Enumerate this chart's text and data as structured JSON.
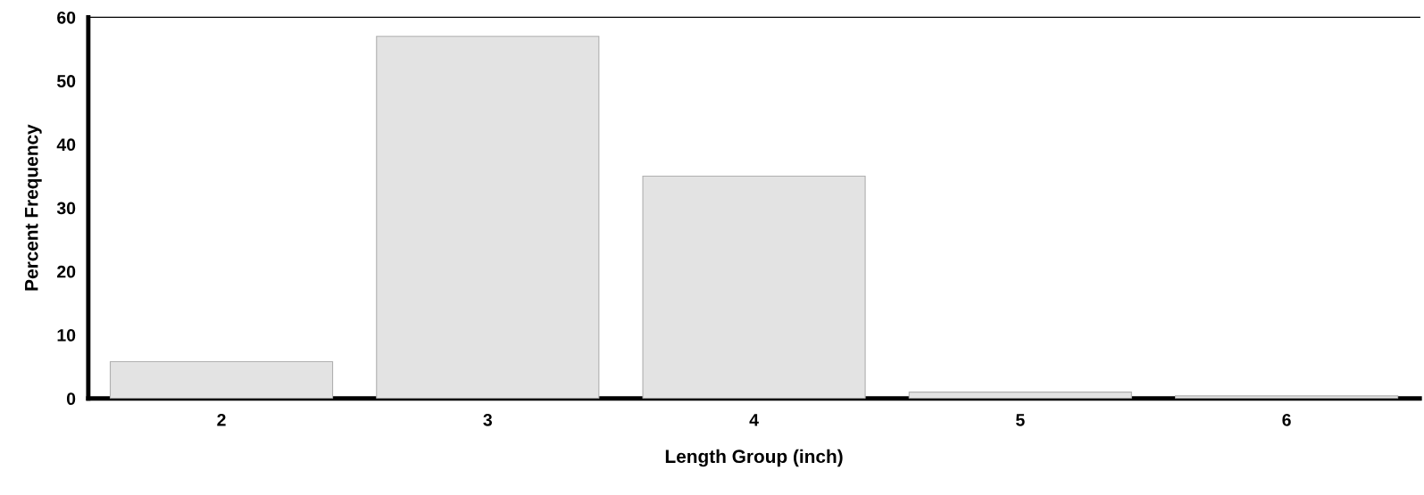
{
  "chart_data": {
    "type": "bar",
    "xlabel": "Length Group (inch)",
    "ylabel": "Percent Frequency",
    "categories": [
      "2",
      "3",
      "4",
      "5",
      "6"
    ],
    "values": [
      5.8,
      57,
      35,
      1,
      0.4
    ],
    "color": "#e3e3e3",
    "ylim": [
      0,
      60
    ],
    "yticks": [
      0,
      10,
      20,
      30,
      40,
      50,
      60
    ],
    "grid": false
  }
}
